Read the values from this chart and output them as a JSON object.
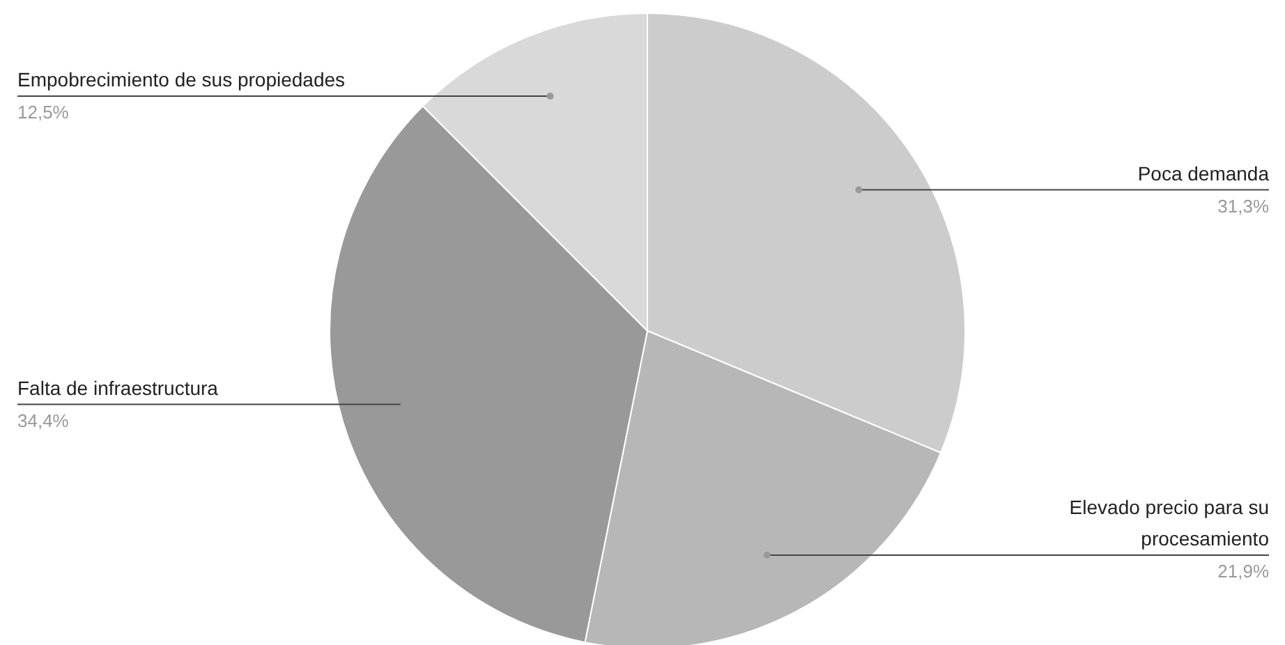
{
  "chart_data": {
    "type": "pie",
    "categories": [
      "Poca demanda",
      "Elevado precio para su procesamiento",
      "Falta de infraestructura",
      "Empobrecimiento de sus propiedades"
    ],
    "values": [
      31.3,
      21.9,
      34.4,
      12.5
    ],
    "value_labels": [
      "31,3%",
      "21,9%",
      "34,4%",
      "12,5%"
    ],
    "colors": [
      "#cccccc",
      "#b7b7b7",
      "#999999",
      "#d9d9d9"
    ]
  }
}
